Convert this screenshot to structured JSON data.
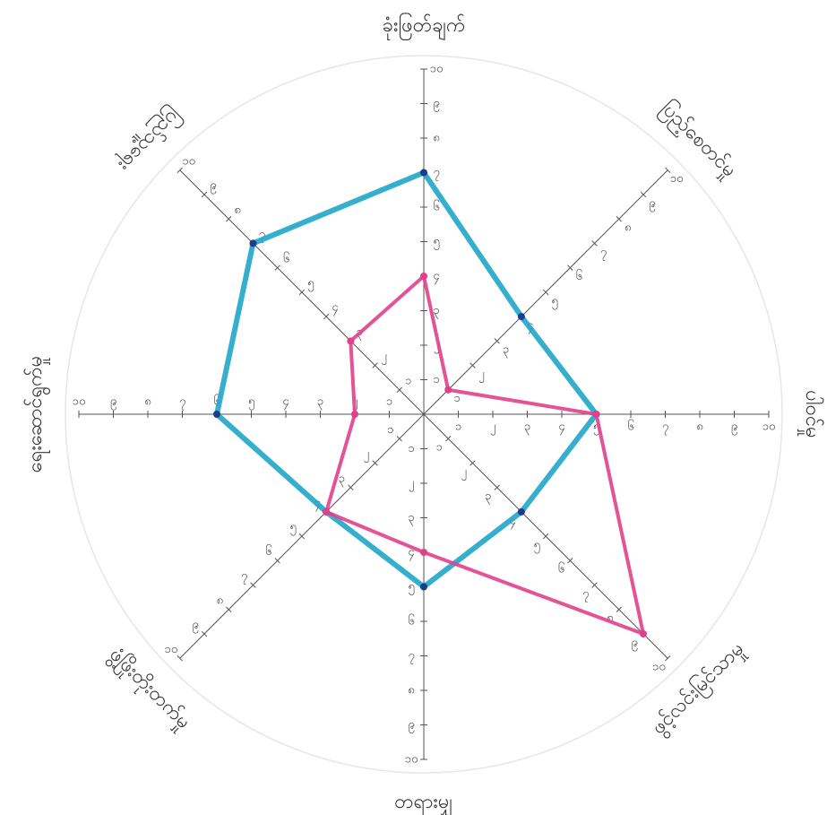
{
  "chart_data": {
    "type": "radar",
    "axes": [
      "ခုံးဖြတ်ချက်",
      "ပြည့်စေတင်မှု",
      "ပါဝင်မှု",
      "ဖွင့်လင်းမြင်သာမှု",
      "တရားမျှ",
      "ဖွံ့ဖြိုးတိုးတက်မှု",
      "ရေးဆောင်ရွက်မှု",
      "ပြည်သူ့ရေး"
    ],
    "rlim": [
      0,
      10
    ],
    "rticks": [
      {
        "value": 1,
        "label": "၁"
      },
      {
        "value": 2,
        "label": "၂"
      },
      {
        "value": 3,
        "label": "၃"
      },
      {
        "value": 4,
        "label": "၄"
      },
      {
        "value": 5,
        "label": "၅"
      },
      {
        "value": 6,
        "label": "၆"
      },
      {
        "value": 7,
        "label": "၇"
      },
      {
        "value": 8,
        "label": "၈"
      },
      {
        "value": 9,
        "label": "၉"
      },
      {
        "value": 10,
        "label": "၁၀"
      }
    ],
    "series": [
      {
        "color": "#1fa6c8",
        "values": [
          7,
          4,
          5,
          4,
          5,
          4,
          6,
          7
        ]
      },
      {
        "color": "#e0408a",
        "values": [
          4,
          1,
          5,
          9,
          4,
          4,
          2,
          3
        ]
      }
    ]
  }
}
